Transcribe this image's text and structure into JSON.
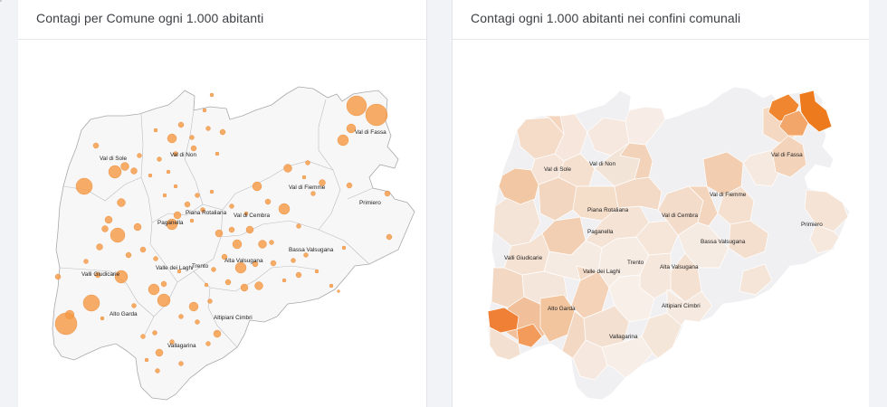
{
  "colors": {
    "bubble": "#f59a45",
    "bubble_stroke": "#e07a20",
    "map_fill": "#f7f7f8",
    "map_border": "#a9a9ad",
    "choropleth_low": "#f4e7df",
    "choropleth_mid": "#f2c6a0",
    "choropleth_high": "#f07a22"
  },
  "left_panel": {
    "title": "Contagi per Comune ogni 1.000 abitanti",
    "labels": [
      "Val di Sole",
      "Val di Non",
      "Val di Fassa",
      "Val di Fiemme",
      "Primiero",
      "Piana Rotaliana",
      "Paganella",
      "Val di Cembra",
      "Bassa Valsugana",
      "Alta Valsugana",
      "Valli Giudicarie",
      "Valle dei Laghi",
      "Trento",
      "Alto Garda",
      "Altipiani Cimbri",
      "Vallagarina"
    ]
  },
  "right_panel": {
    "title": "Contagi ogni 1.000 abitanti nei confini comunali",
    "labels": [
      "Val di Sole",
      "Val di Non",
      "Val di Fassa",
      "Val di Fiemme",
      "Primiero",
      "Piana Rotaliana",
      "Val di Cembra",
      "Paganella",
      "Bassa Valsugana",
      "Valli Giudicarie",
      "Trento",
      "Valle dei Laghi",
      "Alta Valsugana",
      "Alto Garda",
      "Altipiani Cimbri",
      "Vallagarina"
    ]
  }
}
